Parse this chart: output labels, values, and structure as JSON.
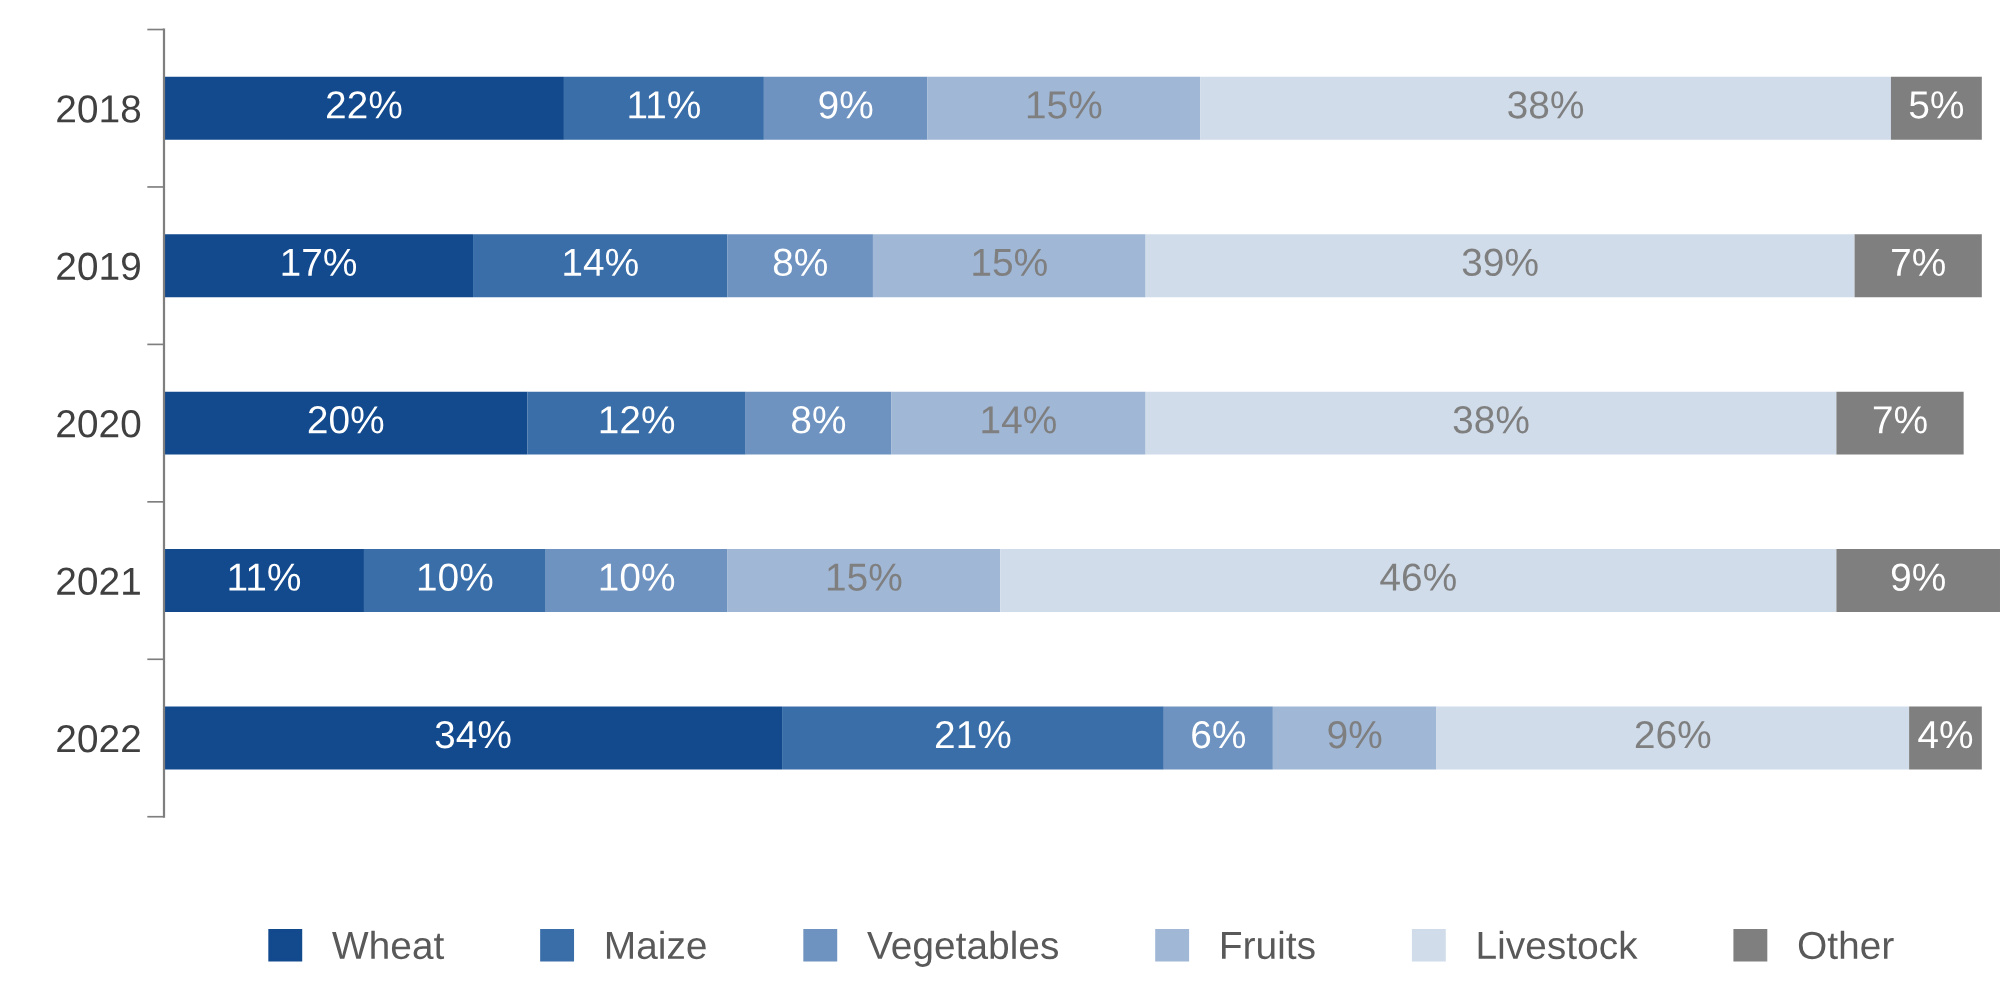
{
  "chart_data": {
    "type": "bar",
    "orientation": "horizontal",
    "stacked": true,
    "categories": [
      "2018",
      "2019",
      "2020",
      "2021",
      "2022"
    ],
    "series": [
      {
        "name": "Wheat",
        "color": "#134a8e",
        "values": [
          22,
          17,
          20,
          11,
          34
        ],
        "value_labels": [
          "22%",
          "17%",
          "20%",
          "11%",
          "34%"
        ]
      },
      {
        "name": "Maize",
        "color": "#3a6ea8",
        "values": [
          11,
          14,
          12,
          10,
          21
        ],
        "value_labels": [
          "11%",
          "14%",
          "12%",
          "10%",
          "21%"
        ]
      },
      {
        "name": "Vegetables",
        "color": "#6f93c0",
        "values": [
          9,
          8,
          8,
          10,
          6
        ],
        "value_labels": [
          "9%",
          "8%",
          "8%",
          "10%",
          "6%"
        ]
      },
      {
        "name": "Fruits",
        "color": "#a0b7d6",
        "values": [
          15,
          15,
          14,
          15,
          9
        ],
        "value_labels": [
          "15%",
          "15%",
          "14%",
          "15%",
          "9%"
        ]
      },
      {
        "name": "Livestock",
        "color": "#d0dcea",
        "values": [
          38,
          39,
          38,
          46,
          26
        ],
        "value_labels": [
          "38%",
          "39%",
          "38%",
          "46%",
          "26%"
        ]
      },
      {
        "name": "Other",
        "color": "#7f7f7f",
        "values": [
          5,
          7,
          7,
          9,
          4
        ],
        "value_labels": [
          "5%",
          "7%",
          "7%",
          "9%",
          "4%"
        ]
      }
    ],
    "tick_labels": "y",
    "legend": "bottom",
    "grid": false
  }
}
